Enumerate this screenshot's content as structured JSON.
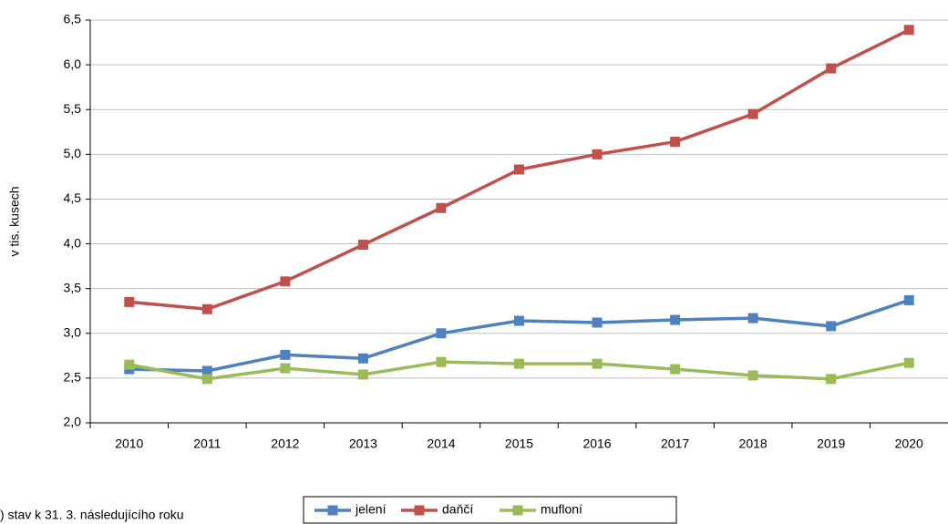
{
  "chart_data": {
    "type": "line",
    "y_label": "v tis. kusech",
    "footnote": ") stav k 31. 3. následujícího roku",
    "categories": [
      "2010",
      "2011",
      "2012",
      "2013",
      "2014",
      "2015",
      "2016",
      "2017",
      "2018",
      "2019",
      "2020"
    ],
    "series": [
      {
        "name": "jelení",
        "color": "#4f81bd",
        "values": [
          2.6,
          2.58,
          2.76,
          2.72,
          3.0,
          3.14,
          3.12,
          3.15,
          3.17,
          3.08,
          3.37
        ]
      },
      {
        "name": "daňčí",
        "color": "#c0504d",
        "values": [
          3.35,
          3.27,
          3.58,
          3.99,
          4.4,
          4.83,
          5.0,
          5.14,
          5.45,
          5.96,
          6.39
        ]
      },
      {
        "name": "mufloní",
        "color": "#9bbb59",
        "values": [
          2.65,
          2.49,
          2.61,
          2.54,
          2.68,
          2.66,
          2.66,
          2.6,
          2.53,
          2.49,
          2.67
        ]
      }
    ],
    "ylim": [
      2.0,
      6.5
    ],
    "yticks": [
      {
        "value": 2.0,
        "label": "2,0"
      },
      {
        "value": 2.5,
        "label": "2,5"
      },
      {
        "value": 3.0,
        "label": "3,0"
      },
      {
        "value": 3.5,
        "label": "3,5"
      },
      {
        "value": 4.0,
        "label": "4,0"
      },
      {
        "value": 4.5,
        "label": "4,5"
      },
      {
        "value": 5.0,
        "label": "5,0"
      },
      {
        "value": 5.5,
        "label": "5,5"
      },
      {
        "value": 6.0,
        "label": "6,0"
      },
      {
        "value": 6.5,
        "label": "6,5"
      }
    ],
    "grid": true,
    "legend": "bottom"
  }
}
